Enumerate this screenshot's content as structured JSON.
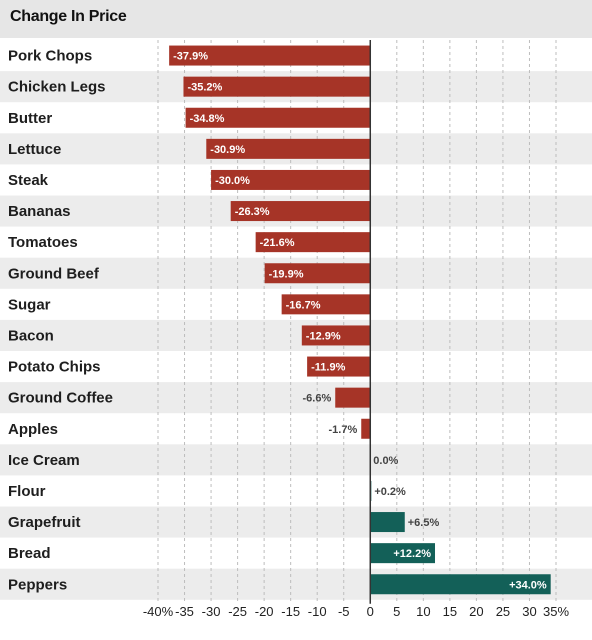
{
  "title": "Change In Price",
  "colors": {
    "negative": "#a63427",
    "positive": "#136058",
    "band": "#ececec",
    "grid": "#bdbdbd",
    "zero_line": "#333333",
    "label_inside": "#ffffff",
    "label_outside": "#444444"
  },
  "chart_data": {
    "type": "bar",
    "orientation": "horizontal",
    "title": "Change In Price",
    "categories": [
      "Pork Chops",
      "Chicken Legs",
      "Butter",
      "Lettuce",
      "Steak",
      "Bananas",
      "Tomatoes",
      "Ground Beef",
      "Sugar",
      "Bacon",
      "Potato Chips",
      "Ground Coffee",
      "Apples",
      "Ice Cream",
      "Flour",
      "Grapefruit",
      "Bread",
      "Peppers"
    ],
    "values": [
      -37.9,
      -35.2,
      -34.8,
      -30.9,
      -30.0,
      -26.3,
      -21.6,
      -19.9,
      -16.7,
      -12.9,
      -11.9,
      -6.6,
      -1.7,
      0.0,
      0.2,
      6.5,
      12.2,
      34.0
    ],
    "value_labels": [
      "-37.9%",
      "-35.2%",
      "-34.8%",
      "-30.9%",
      "-30.0%",
      "-26.3%",
      "-21.6%",
      "-19.9%",
      "-16.7%",
      "-12.9%",
      "-11.9%",
      "-6.6%",
      "-1.7%",
      "0.0%",
      "+0.2%",
      "+6.5%",
      "+12.2%",
      "+34.0%"
    ],
    "xlim": [
      -40,
      35
    ],
    "xticks": [
      -40,
      -35,
      -30,
      -25,
      -20,
      -15,
      -10,
      -5,
      0,
      5,
      10,
      15,
      20,
      25,
      30,
      35
    ],
    "xtick_labels": [
      "-40%",
      "-35",
      "-30",
      "-25",
      "-20",
      "-15",
      "-10",
      "-5",
      "0",
      "5",
      "10",
      "15",
      "20",
      "25",
      "30",
      "35%"
    ],
    "xlabel": "",
    "ylabel": "",
    "grid": "vertical dashed",
    "alternating_row_bands": true,
    "legend": "none"
  }
}
